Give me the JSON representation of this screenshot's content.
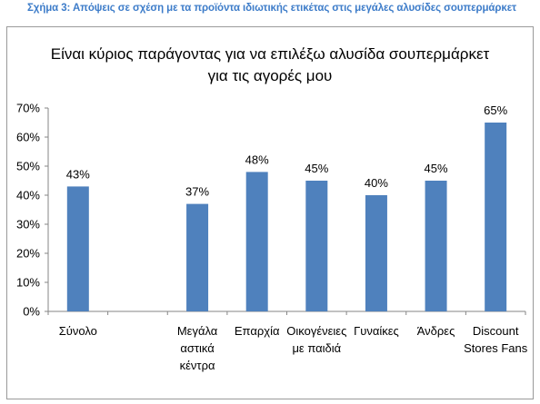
{
  "figure_caption": "Σχήμα 3: Απόψεις σε σχέση με τα προϊόντα ιδιωτικής ετικέτας στις μεγάλες αλυσίδες σουπερμάρκετ",
  "chart_data": {
    "type": "bar",
    "title": "Είναι κύριος παράγοντας για να επιλέξω αλυσίδα σουπερμάρκετ για τις αγορές μου",
    "title_lines": [
      "Είναι κύριος παράγοντας για να επιλέξω αλυσίδα σουπερμάρκετ",
      "για τις αγορές μου"
    ],
    "categories": [
      "Σύνολο",
      "",
      "Μεγάλα αστικά κέντρα",
      "Επαρχία",
      "Οικογένειες με παιδιά",
      "Γυναίκες",
      "Άνδρες",
      "Discount Stores Fans"
    ],
    "category_lines": [
      [
        "Σύνολο"
      ],
      [],
      [
        "Μεγάλα",
        "αστικά",
        "κέντρα"
      ],
      [
        "Επαρχία"
      ],
      [
        "Οικογένειες",
        "με παιδιά"
      ],
      [
        "Γυναίκες"
      ],
      [
        "Άνδρες"
      ],
      [
        "Discount",
        "Stores Fans"
      ]
    ],
    "values": [
      43,
      null,
      37,
      48,
      45,
      40,
      45,
      65
    ],
    "data_labels": [
      "43%",
      "",
      "37%",
      "48%",
      "45%",
      "40%",
      "45%",
      "65%"
    ],
    "y_ticks": [
      "0%",
      "10%",
      "20%",
      "30%",
      "40%",
      "50%",
      "60%",
      "70%"
    ],
    "ylim": [
      0,
      70
    ],
    "grid": false,
    "bar_color": "#4f81bd",
    "xlabel": "",
    "ylabel": ""
  }
}
